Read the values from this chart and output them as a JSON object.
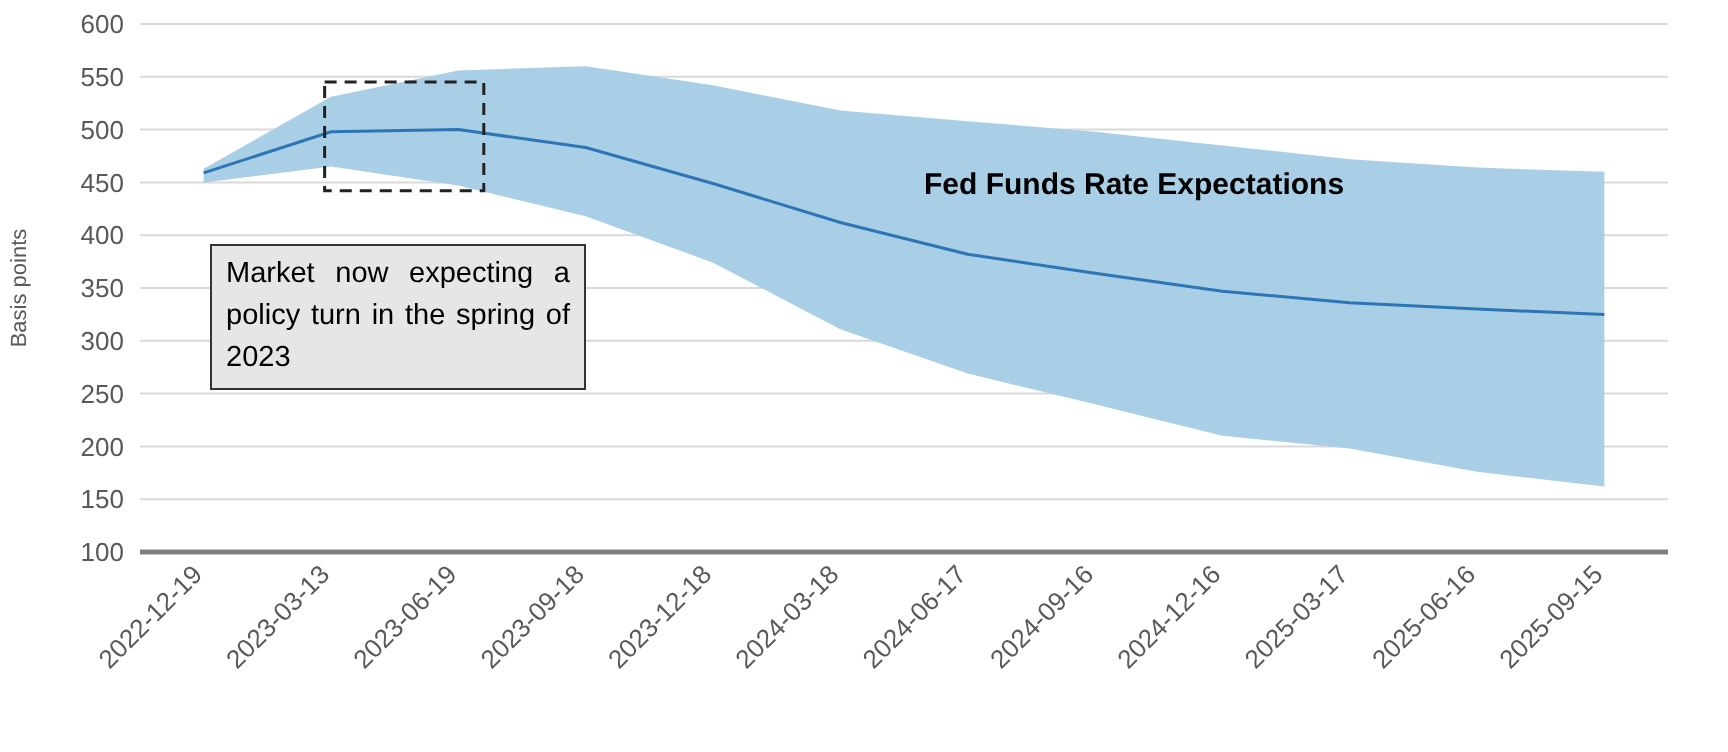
{
  "chart_data": {
    "type": "line",
    "ylabel": "Basis points",
    "categories": [
      "2022-12-19",
      "2023-03-13",
      "2023-06-19",
      "2023-09-18",
      "2023-12-18",
      "2024-03-18",
      "2024-06-17",
      "2024-09-16",
      "2024-12-16",
      "2025-03-17",
      "2025-06-16",
      "2025-09-15"
    ],
    "series": [
      {
        "color": "#2e75b6",
        "values": [
          459,
          498,
          500,
          483,
          449,
          412,
          382,
          364,
          347,
          336,
          330,
          325
        ],
        "lower": [
          450,
          465,
          447,
          418,
          374,
          311,
          269,
          240,
          210,
          198,
          176,
          162
        ],
        "upper": [
          463,
          531,
          556,
          560,
          542,
          518,
          508,
          498,
          485,
          472,
          464,
          460
        ]
      }
    ],
    "ylim": [
      100,
      600
    ],
    "yticks": [
      100,
      150,
      200,
      250,
      300,
      350,
      400,
      450,
      500,
      550,
      600
    ],
    "grid": "y",
    "marker": "none",
    "line_style": "solid",
    "annotations": [
      "Fed Funds Rate Expectations",
      "Market now expecting a policy turn in the spring of 2023"
    ]
  }
}
